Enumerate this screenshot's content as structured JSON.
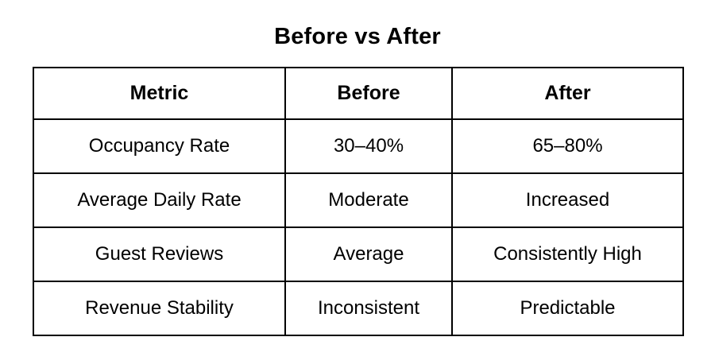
{
  "title": "Before vs After",
  "colors": {
    "background": "#ffffff",
    "border": "#000000",
    "text": "#000000"
  },
  "table": {
    "headers": [
      "Metric",
      "Before",
      "After"
    ],
    "rows": [
      [
        "Occupancy Rate",
        "30–40%",
        "65–80%"
      ],
      [
        "Average Daily Rate",
        "Moderate",
        "Increased"
      ],
      [
        "Guest Reviews",
        "Average",
        "Consistently High"
      ],
      [
        "Revenue Stability",
        "Inconsistent",
        "Predictable"
      ]
    ]
  }
}
